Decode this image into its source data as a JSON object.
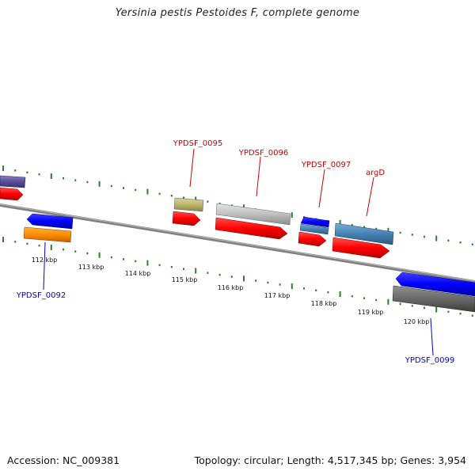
{
  "title": "Yersinia pestis Pestoides F, complete genome",
  "footer": {
    "accession": "Accession: NC_009381",
    "summary": "Topology: circular; Length: 4,517,345 bp; Genes: 3,954"
  },
  "colors": {
    "backbone": "#808080",
    "tick_dots": "#2e7d32",
    "cds": "#ff0000",
    "label_forward": "#cc0000",
    "label_reverse": "#0000cc"
  },
  "axis": {
    "unit": "kbp",
    "ticks": [
      112,
      113,
      114,
      115,
      116,
      117,
      118,
      119,
      120
    ]
  },
  "genes": [
    {
      "id": "ypdsf-0092",
      "label": "YPDSF_0092",
      "strand": "reverse",
      "color": "#ff8c00"
    },
    {
      "id": "ypdsf-0095",
      "label": "YPDSF_0095",
      "strand": "forward",
      "color": "#bdb76b"
    },
    {
      "id": "ypdsf-0096",
      "label": "YPDSF_0096",
      "strand": "forward",
      "color": "#c0c0c0"
    },
    {
      "id": "ypdsf-0097",
      "label": "YPDSF_0097",
      "strand": "forward",
      "color": "#4682b4"
    },
    {
      "id": "argd",
      "label": "argD",
      "strand": "forward",
      "color": "#4682b4"
    },
    {
      "id": "ypdsf-0099",
      "label": "YPDSF_0099",
      "strand": "reverse",
      "color": "#696969"
    }
  ]
}
